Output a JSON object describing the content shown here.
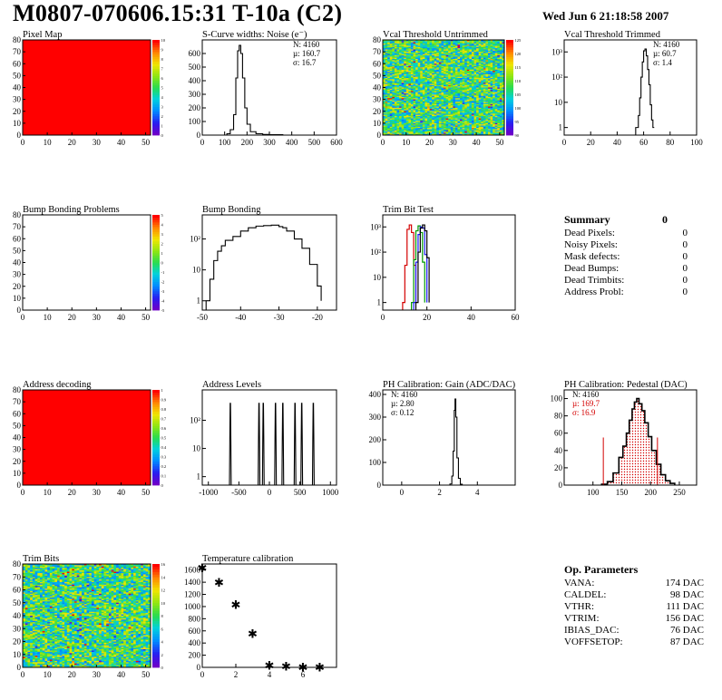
{
  "header": {
    "title": "M0807-070606.15:31 T-10a (C2)",
    "date": "Wed Jun  6 21:18:58 2007"
  },
  "chart_data": [
    {
      "id": "pixel-map",
      "type": "heatmap",
      "title": "Pixel Map",
      "x": {
        "range": [
          0,
          52
        ],
        "ticks": [
          0,
          10,
          20,
          30,
          40,
          50
        ]
      },
      "y": {
        "range": [
          0,
          80
        ],
        "ticks": [
          0,
          10,
          20,
          30,
          40,
          50,
          60,
          70,
          80
        ]
      },
      "z_scale": [
        "0",
        "1",
        "2",
        "3",
        "4",
        "5",
        "6",
        "7",
        "8",
        "9",
        "10"
      ],
      "fill": "uniform-max"
    },
    {
      "id": "scurve-noise",
      "type": "line",
      "title": "S-Curve widths: Noise (e⁻)",
      "x": {
        "range": [
          0,
          600
        ],
        "ticks": [
          0,
          100,
          200,
          300,
          400,
          500,
          600
        ]
      },
      "y": {
        "range": [
          0,
          700
        ],
        "ticks": [
          0,
          100,
          200,
          300,
          400,
          500,
          600
        ]
      },
      "stats": {
        "N": "4160",
        "mu": "160.7",
        "sigma": "16.7"
      },
      "points": [
        [
          95,
          0
        ],
        [
          110,
          10
        ],
        [
          125,
          40
        ],
        [
          140,
          150
        ],
        [
          150,
          420
        ],
        [
          158,
          620
        ],
        [
          165,
          660
        ],
        [
          172,
          600
        ],
        [
          180,
          420
        ],
        [
          190,
          200
        ],
        [
          200,
          80
        ],
        [
          215,
          25
        ],
        [
          240,
          10
        ],
        [
          270,
          5
        ],
        [
          300,
          3
        ],
        [
          360,
          0
        ]
      ]
    },
    {
      "id": "vcal-untrimmed",
      "type": "heatmap",
      "title": "Vcal Threshold Untrimmed",
      "x": {
        "range": [
          0,
          52
        ],
        "ticks": [
          0,
          10,
          20,
          30,
          40,
          50
        ]
      },
      "y": {
        "range": [
          0,
          80
        ],
        "ticks": [
          0,
          10,
          20,
          30,
          40,
          50,
          60,
          70,
          80
        ]
      },
      "z_scale": [
        "90",
        "95",
        "100",
        "105",
        "110",
        "115",
        "120",
        "125"
      ],
      "fill": "random-mid"
    },
    {
      "id": "vcal-trimmed",
      "type": "line",
      "title": "Vcal Threshold Trimmed",
      "log_y": true,
      "x": {
        "range": [
          0,
          100
        ],
        "ticks": [
          0,
          20,
          40,
          60,
          80,
          100
        ]
      },
      "y": {
        "range": [
          0.5,
          3000
        ],
        "ticks": [
          "1",
          "10",
          "10²",
          "10³"
        ]
      },
      "stats": {
        "N": "4160",
        "mu": "60.7",
        "sigma": "1.4"
      },
      "points": [
        [
          54,
          1
        ],
        [
          56,
          3
        ],
        [
          57,
          15
        ],
        [
          58,
          100
        ],
        [
          59,
          400
        ],
        [
          60,
          1100
        ],
        [
          61,
          1300
        ],
        [
          62,
          700
        ],
        [
          63,
          200
        ],
        [
          64,
          50
        ],
        [
          65,
          8
        ],
        [
          66,
          2
        ],
        [
          67,
          1
        ],
        [
          68,
          1
        ]
      ]
    },
    {
      "id": "bump-problems",
      "type": "heatmap",
      "title": "Bump Bonding Problems",
      "x": {
        "range": [
          0,
          52
        ],
        "ticks": [
          0,
          10,
          20,
          30,
          40,
          50
        ]
      },
      "y": {
        "range": [
          0,
          80
        ],
        "ticks": [
          0,
          10,
          20,
          30,
          40,
          50,
          60,
          70,
          80
        ]
      },
      "z_scale": [
        "-5",
        "-4",
        "-3",
        "-2",
        "-1",
        "0",
        "1",
        "2",
        "3",
        "4",
        "5"
      ],
      "fill": "empty"
    },
    {
      "id": "bump-bonding",
      "type": "line",
      "title": "Bump Bonding",
      "log_y": true,
      "x": {
        "range": [
          -50,
          -15
        ],
        "ticks": [
          -50,
          -40,
          -30,
          -20
        ]
      },
      "y": {
        "range": [
          0.5,
          600
        ],
        "ticks": [
          "1",
          "10",
          "10²"
        ]
      },
      "points": [
        [
          -49,
          1
        ],
        [
          -48,
          5
        ],
        [
          -47,
          20
        ],
        [
          -46,
          40
        ],
        [
          -45,
          60
        ],
        [
          -44,
          90
        ],
        [
          -42,
          120
        ],
        [
          -40,
          180
        ],
        [
          -38,
          230
        ],
        [
          -36,
          260
        ],
        [
          -34,
          270
        ],
        [
          -32,
          280
        ],
        [
          -30,
          250
        ],
        [
          -29,
          230
        ],
        [
          -28,
          180
        ],
        [
          -26,
          100
        ],
        [
          -24,
          50
        ],
        [
          -22,
          15
        ],
        [
          -20,
          3
        ],
        [
          -19,
          1
        ]
      ]
    },
    {
      "id": "trim-bit-test",
      "type": "line",
      "title": "Trim Bit Test",
      "log_y": true,
      "x": {
        "range": [
          0,
          60
        ],
        "ticks": [
          0,
          20,
          40,
          60
        ]
      },
      "y": {
        "range": [
          0.5,
          3000
        ],
        "ticks": [
          "1",
          "10",
          "10²",
          "10³"
        ]
      },
      "series": [
        {
          "color": "#d40000",
          "points": [
            [
              9,
              1
            ],
            [
              10,
              30
            ],
            [
              11,
              800
            ],
            [
              12,
              1200
            ],
            [
              13,
              600
            ],
            [
              14,
              30
            ],
            [
              15,
              1
            ]
          ]
        },
        {
          "color": "#009900",
          "points": [
            [
              13,
              1
            ],
            [
              14,
              50
            ],
            [
              15,
              700
            ],
            [
              16,
              1100
            ],
            [
              17,
              600
            ],
            [
              18,
              40
            ],
            [
              19,
              1
            ]
          ]
        },
        {
          "color": "#1a1aff",
          "points": [
            [
              14,
              1
            ],
            [
              15,
              40
            ],
            [
              16,
              500
            ],
            [
              17,
              1000
            ],
            [
              18,
              900
            ],
            [
              19,
              80
            ],
            [
              20,
              1
            ]
          ]
        },
        {
          "color": "#000000",
          "points": [
            [
              15,
              1
            ],
            [
              16,
              100
            ],
            [
              17,
              900
            ],
            [
              18,
              1200
            ],
            [
              19,
              700
            ],
            [
              20,
              60
            ],
            [
              21,
              1
            ]
          ]
        }
      ]
    },
    {
      "id": "address-decoding",
      "type": "heatmap",
      "title": "Address decoding",
      "x": {
        "range": [
          0,
          52
        ],
        "ticks": [
          0,
          10,
          20,
          30,
          40,
          50
        ]
      },
      "y": {
        "range": [
          0,
          80
        ],
        "ticks": [
          0,
          10,
          20,
          30,
          40,
          50,
          60,
          70,
          80
        ]
      },
      "z_scale": [
        "0",
        "0.1",
        "0.2",
        "0.3",
        "0.4",
        "0.5",
        "0.6",
        "0.7",
        "0.8",
        "0.9",
        "1"
      ],
      "fill": "uniform-max"
    },
    {
      "id": "address-levels",
      "type": "line",
      "title": "Address Levels",
      "log_y": true,
      "x": {
        "range": [
          -1100,
          1100
        ],
        "ticks": [
          -1000,
          -500,
          0,
          500,
          1000
        ]
      },
      "y": {
        "range": [
          0.5,
          1200
        ],
        "ticks": [
          "1",
          "10",
          "10²"
        ]
      },
      "peaks": [
        -640,
        -170,
        -100,
        100,
        220,
        420,
        530,
        720
      ]
    },
    {
      "id": "ph-gain",
      "type": "line",
      "title": "PH Calibration: Gain (ADC/DAC)",
      "x": {
        "range": [
          -1,
          6
        ],
        "ticks": [
          0,
          2,
          4
        ]
      },
      "y": {
        "range": [
          0,
          420
        ],
        "ticks": [
          0,
          100,
          200,
          300,
          400
        ]
      },
      "stats": {
        "N": "4160",
        "mu": "2.80",
        "sigma": "0.12"
      },
      "points": [
        [
          2.4,
          0
        ],
        [
          2.55,
          5
        ],
        [
          2.65,
          40
        ],
        [
          2.72,
          150
        ],
        [
          2.78,
          330
        ],
        [
          2.82,
          380
        ],
        [
          2.86,
          300
        ],
        [
          2.92,
          120
        ],
        [
          3.0,
          30
        ],
        [
          3.1,
          4
        ],
        [
          3.2,
          0
        ]
      ]
    },
    {
      "id": "ph-pedestal",
      "type": "line",
      "title": "PH Calibration: Pedestal (DAC)",
      "x": {
        "range": [
          50,
          280
        ],
        "ticks": [
          100,
          150,
          200,
          250
        ]
      },
      "y": {
        "range": [
          0,
          110
        ],
        "ticks": [
          0,
          20,
          40,
          60,
          80,
          100
        ]
      },
      "stats": {
        "N": "4160",
        "mu": "169.7",
        "sigma": "16.9"
      },
      "fit_limits": [
        118,
        212
      ],
      "points": [
        [
          115,
          1
        ],
        [
          125,
          4
        ],
        [
          135,
          14
        ],
        [
          145,
          32
        ],
        [
          152,
          45
        ],
        [
          158,
          60
        ],
        [
          163,
          75
        ],
        [
          168,
          88
        ],
        [
          172,
          96
        ],
        [
          176,
          100
        ],
        [
          180,
          94
        ],
        [
          185,
          86
        ],
        [
          190,
          72
        ],
        [
          196,
          56
        ],
        [
          202,
          40
        ],
        [
          210,
          24
        ],
        [
          218,
          12
        ],
        [
          226,
          5
        ],
        [
          234,
          2
        ],
        [
          242,
          0
        ]
      ]
    },
    {
      "id": "trim-bits",
      "type": "heatmap",
      "title": "Trim Bits",
      "x": {
        "range": [
          0,
          52
        ],
        "ticks": [
          0,
          10,
          20,
          30,
          40,
          50
        ]
      },
      "y": {
        "range": [
          0,
          80
        ],
        "ticks": [
          0,
          10,
          20,
          30,
          40,
          50,
          60,
          70,
          80
        ]
      },
      "z_scale": [
        "0",
        "2",
        "4",
        "6",
        "8",
        "10",
        "12",
        "14",
        "16"
      ],
      "fill": "random-mid"
    },
    {
      "id": "temperature",
      "type": "scatter",
      "title": "Temperature calibration",
      "x": {
        "range": [
          0,
          8
        ],
        "ticks": [
          0,
          2,
          4,
          6
        ]
      },
      "y": {
        "range": [
          0,
          1700
        ],
        "ticks": [
          0,
          200,
          400,
          600,
          800,
          1000,
          1200,
          1400,
          1600
        ]
      },
      "points": [
        [
          0,
          1640
        ],
        [
          1,
          1400
        ],
        [
          2,
          1040
        ],
        [
          3,
          560
        ],
        [
          4,
          40
        ],
        [
          5,
          20
        ],
        [
          6,
          10
        ],
        [
          7,
          10
        ]
      ]
    }
  ],
  "summary": {
    "title": "Summary",
    "total": "0",
    "rows": [
      {
        "label": "Dead Pixels:",
        "value": "0"
      },
      {
        "label": "Noisy Pixels:",
        "value": "0"
      },
      {
        "label": "Mask defects:",
        "value": "0"
      },
      {
        "label": "Dead Bumps:",
        "value": "0"
      },
      {
        "label": "Dead Trimbits:",
        "value": "0"
      },
      {
        "label": "Address Probl:",
        "value": "0"
      }
    ]
  },
  "op_parameters": {
    "title": "Op. Parameters",
    "rows": [
      {
        "label": "VANA:",
        "value": "174 DAC"
      },
      {
        "label": "CALDEL:",
        "value": "98 DAC"
      },
      {
        "label": "VTHR:",
        "value": "111 DAC"
      },
      {
        "label": "VTRIM:",
        "value": "156 DAC"
      },
      {
        "label": "IBIAS_DAC:",
        "value": "76 DAC"
      },
      {
        "label": "VOFFSETOP:",
        "value": "87 DAC"
      }
    ]
  }
}
